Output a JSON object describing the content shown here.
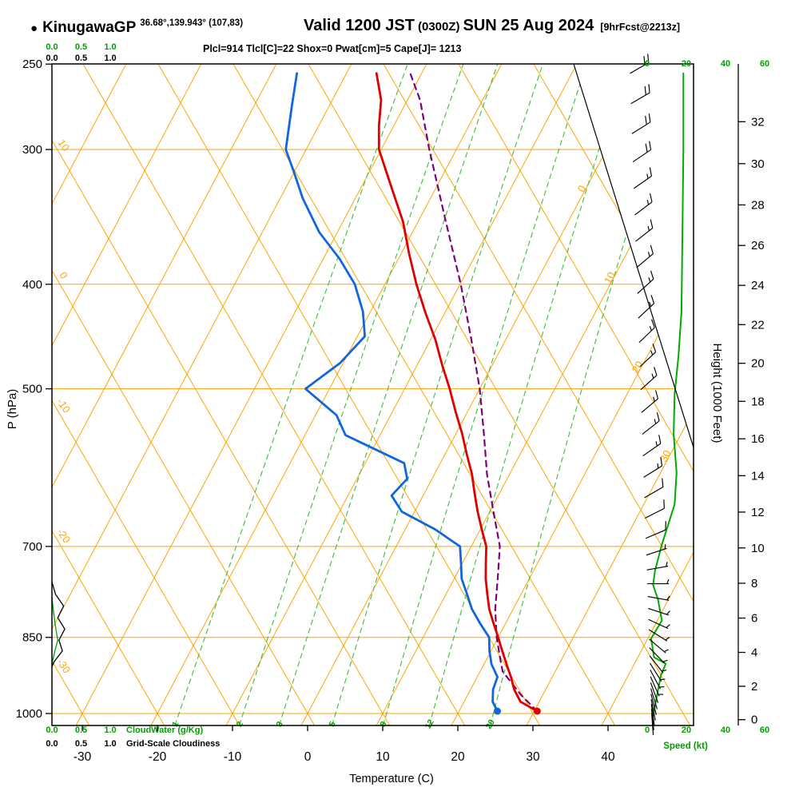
{
  "header": {
    "bullet": "●",
    "station": "KinugawaGP",
    "coords": "36.68°,139.943° (107,83)",
    "valid_label": "Valid 1200 JST",
    "valid_zulu": "(0300Z)",
    "valid_date": "SUN 25 Aug 2024",
    "forecast_ref": "[9hrFcst@2213z]",
    "params": "Plcl=914 Tlcl[C]=22 Shox=0 Pwat[cm]=5 Cape[J]= 1213"
  },
  "scales": {
    "fraction_ticks": [
      "0.0",
      "0.5",
      "1.0"
    ],
    "cloudwater_label": "CloudWater (g/Kg)",
    "cloudiness_label": "Grid-Scale Cloudiness",
    "speed_ticks": [
      "0",
      "20",
      "40",
      "60"
    ],
    "speed_label": "Speed (kt)"
  },
  "axes": {
    "pressure_label": "P (hPa)",
    "pressure_ticks": [
      250,
      300,
      400,
      500,
      700,
      850,
      1000
    ],
    "temperature_label": "Temperature (C)",
    "temperature_ticks": [
      -30,
      -20,
      -10,
      0,
      10,
      20,
      30,
      40
    ],
    "height_label": "Height (1000 Feet)",
    "height_ticks": [
      0,
      2,
      4,
      6,
      8,
      10,
      12,
      14,
      16,
      18,
      20,
      22,
      24,
      26,
      28,
      30,
      32
    ]
  },
  "chart_data": {
    "type": "skew-t log-p sounding",
    "pressure_range_hpa": [
      250,
      1025
    ],
    "temperature_axis_range_c": [
      -30,
      40
    ],
    "isobar_levels": [
      300,
      400,
      500,
      700,
      850,
      1000
    ],
    "isotherm_labels": [
      0,
      10,
      20,
      30
    ],
    "dry_adiabat_labels": [
      10,
      0,
      -10,
      -20,
      -30
    ],
    "mixing_ratio_values": [
      1,
      2,
      3,
      5,
      8,
      12,
      20
    ],
    "surface": {
      "pressure_hpa": 995,
      "temperature_c": 30.4,
      "dewpoint_c": 25.1
    },
    "lcl_hpa": 914,
    "cape_j": 1213,
    "temperature_profile": [
      [
        995,
        30.4
      ],
      [
        975,
        27.5
      ],
      [
        950,
        25.8
      ],
      [
        925,
        24.5
      ],
      [
        900,
        23.0
      ],
      [
        875,
        21.5
      ],
      [
        850,
        20.0
      ],
      [
        825,
        18.4
      ],
      [
        800,
        16.8
      ],
      [
        775,
        15.5
      ],
      [
        750,
        14.2
      ],
      [
        725,
        13.1
      ],
      [
        700,
        12.0
      ],
      [
        675,
        10.2
      ],
      [
        650,
        8.4
      ],
      [
        625,
        6.7
      ],
      [
        600,
        5.0
      ],
      [
        575,
        2.9
      ],
      [
        550,
        0.8
      ],
      [
        525,
        -1.6
      ],
      [
        500,
        -4.0
      ],
      [
        475,
        -6.7
      ],
      [
        450,
        -9.4
      ],
      [
        425,
        -12.6
      ],
      [
        400,
        -15.8
      ],
      [
        375,
        -18.9
      ],
      [
        350,
        -22.0
      ],
      [
        325,
        -26.0
      ],
      [
        300,
        -30.3
      ],
      [
        285,
        -32.0
      ],
      [
        270,
        -33.5
      ],
      [
        255,
        -36.0
      ]
    ],
    "dewpoint_profile": [
      [
        995,
        25.1
      ],
      [
        975,
        23.8
      ],
      [
        950,
        23.0
      ],
      [
        925,
        22.7
      ],
      [
        900,
        21.0
      ],
      [
        875,
        19.8
      ],
      [
        850,
        18.8
      ],
      [
        825,
        16.6
      ],
      [
        800,
        14.5
      ],
      [
        775,
        12.8
      ],
      [
        750,
        11.0
      ],
      [
        725,
        9.8
      ],
      [
        700,
        8.5
      ],
      [
        675,
        4.0
      ],
      [
        650,
        -1.7
      ],
      [
        628,
        -4.2
      ],
      [
        606,
        -3.3
      ],
      [
        586,
        -4.8
      ],
      [
        552,
        -14.6
      ],
      [
        529,
        -17.2
      ],
      [
        500,
        -23.2
      ],
      [
        473,
        -20.4
      ],
      [
        447,
        -19.0
      ],
      [
        424,
        -21.0
      ],
      [
        400,
        -24.0
      ],
      [
        379,
        -27.8
      ],
      [
        358,
        -32.4
      ],
      [
        333,
        -37.0
      ],
      [
        315,
        -40.0
      ],
      [
        300,
        -42.7
      ],
      [
        273,
        -45.0
      ],
      [
        255,
        -46.6
      ]
    ],
    "parcel_profile": [
      [
        995,
        30.4
      ],
      [
        960,
        27.0
      ],
      [
        914,
        23.0
      ],
      [
        890,
        21.8
      ],
      [
        850,
        19.8
      ],
      [
        800,
        17.6
      ],
      [
        750,
        15.8
      ],
      [
        700,
        13.8
      ],
      [
        650,
        10.5
      ],
      [
        600,
        7.0
      ],
      [
        550,
        3.7
      ],
      [
        500,
        0.0
      ],
      [
        450,
        -4.6
      ],
      [
        400,
        -9.9
      ],
      [
        350,
        -16.3
      ],
      [
        300,
        -23.6
      ],
      [
        270,
        -28.3
      ],
      [
        255,
        -31.5
      ]
    ],
    "wind_speed_profile": [
      [
        255,
        18.5
      ],
      [
        300,
        18.5
      ],
      [
        360,
        18
      ],
      [
        424,
        17.5
      ],
      [
        466,
        16
      ],
      [
        506,
        14
      ],
      [
        551,
        13.5
      ],
      [
        598,
        15
      ],
      [
        640,
        14
      ],
      [
        697,
        7.5
      ],
      [
        737,
        4
      ],
      [
        760,
        3
      ],
      [
        784,
        5.5
      ],
      [
        820,
        7.5
      ],
      [
        852,
        2
      ],
      [
        887,
        3.5
      ],
      [
        899,
        9.5
      ],
      [
        922,
        7
      ],
      [
        1005,
        3
      ]
    ],
    "wind_barbs": [
      [
        255,
        60,
        20
      ],
      [
        272,
        60,
        20
      ],
      [
        290,
        58,
        20
      ],
      [
        308,
        56,
        20
      ],
      [
        326,
        55,
        15
      ],
      [
        345,
        53,
        15
      ],
      [
        365,
        52,
        15
      ],
      [
        386,
        50,
        15
      ],
      [
        408,
        48,
        15
      ],
      [
        430,
        47,
        15
      ],
      [
        453,
        46,
        15
      ],
      [
        477,
        47,
        15
      ],
      [
        501,
        48,
        15
      ],
      [
        526,
        50,
        15
      ],
      [
        551,
        52,
        15
      ],
      [
        577,
        55,
        15
      ],
      [
        604,
        58,
        15
      ],
      [
        631,
        60,
        10
      ],
      [
        659,
        63,
        10
      ],
      [
        688,
        67,
        10
      ],
      [
        713,
        72,
        8
      ],
      [
        736,
        80,
        5
      ],
      [
        758,
        90,
        5
      ],
      [
        779,
        100,
        5
      ],
      [
        799,
        108,
        5
      ],
      [
        818,
        115,
        5
      ],
      [
        836,
        122,
        5
      ],
      [
        853,
        130,
        5
      ],
      [
        869,
        136,
        5
      ],
      [
        884,
        142,
        5
      ],
      [
        898,
        148,
        5
      ],
      [
        911,
        152,
        5
      ],
      [
        924,
        156,
        5
      ],
      [
        936,
        160,
        4
      ],
      [
        948,
        163,
        4
      ],
      [
        959,
        166,
        3
      ],
      [
        970,
        169,
        3
      ],
      [
        980,
        172,
        3
      ],
      [
        990,
        174,
        3
      ],
      [
        1000,
        176,
        3
      ]
    ],
    "cloudwater_profile": [
      [
        780,
        0
      ],
      [
        800,
        0.02
      ],
      [
        830,
        0.06
      ],
      [
        855,
        0.1
      ],
      [
        875,
        0.05
      ],
      [
        895,
        0.01
      ],
      [
        905,
        0
      ]
    ],
    "cloudiness_profile": [
      [
        755,
        0
      ],
      [
        775,
        0.06
      ],
      [
        795,
        0.2
      ],
      [
        815,
        0.1
      ],
      [
        835,
        0.22
      ],
      [
        855,
        0.12
      ],
      [
        875,
        0.18
      ],
      [
        895,
        0.04
      ],
      [
        905,
        0
      ]
    ],
    "colors": {
      "temperature": "#e00000",
      "dewpoint": "#1166dd",
      "parcel": "#7d007d",
      "grid": "#ffa500",
      "mixing": "#4bc04b",
      "speed": "#00aa00",
      "green_text": "#00a000",
      "purple_text": "#b000b0"
    }
  }
}
